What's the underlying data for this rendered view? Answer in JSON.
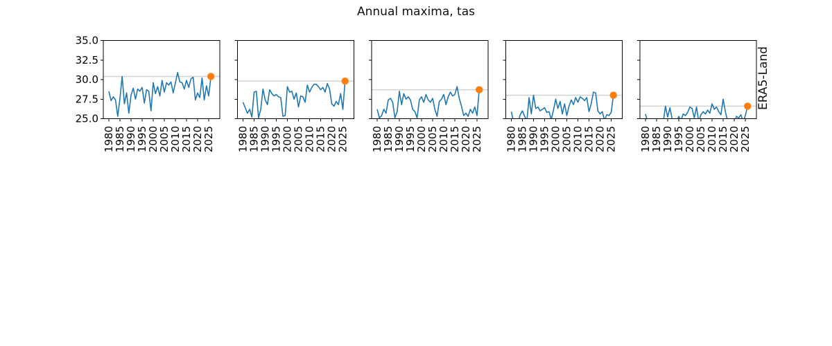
{
  "chart_data": {
    "type": "line",
    "title": "Annual maxima, tas",
    "ylabel_right": "ERA5-Land",
    "years": [
      1980,
      1981,
      1982,
      1983,
      1984,
      1985,
      1986,
      1987,
      1988,
      1989,
      1990,
      1991,
      1992,
      1993,
      1994,
      1995,
      1996,
      1997,
      1998,
      1999,
      2000,
      2001,
      2002,
      2003,
      2004,
      2005,
      2006,
      2007,
      2008,
      2009,
      2010,
      2011,
      2012,
      2013,
      2014,
      2015,
      2016,
      2017,
      2018,
      2019,
      2020,
      2021,
      2022,
      2023,
      2024,
      2025,
      2026
    ],
    "highlight_year": 2026,
    "xlim": [
      1977.5,
      2030.0
    ],
    "ylim": [
      25.0,
      35.0
    ],
    "grid": false,
    "yticks": [
      25.0,
      27.5,
      30.0,
      32.5,
      35.0
    ],
    "ytick_labels": [
      "25.0",
      "27.5",
      "30.0",
      "32.5",
      "35.0"
    ],
    "xticks": [
      1980,
      1985,
      1990,
      1995,
      2000,
      2005,
      2010,
      2015,
      2020,
      2025
    ],
    "xtick_labels": [
      "1980",
      "1985",
      "1990",
      "1995",
      "2000",
      "2005",
      "2010",
      "2015",
      "2020",
      "2025"
    ],
    "colors": {
      "line": "#1f77b4",
      "dot": "#ff7f0e",
      "reference": "#d3d3d3",
      "axis": "#000000"
    },
    "panels": [
      {
        "name": "panel-1",
        "reference": 30.4,
        "values": [
          28.5,
          27.3,
          27.8,
          27.4,
          25.3,
          27.6,
          30.4,
          26.9,
          28.3,
          25.7,
          28.0,
          28.9,
          27.5,
          28.8,
          28.5,
          29.0,
          27.0,
          28.7,
          28.5,
          26.0,
          29.6,
          28.2,
          29.1,
          27.9,
          29.9,
          28.4,
          29.6,
          29.3,
          29.7,
          28.3,
          29.6,
          30.9,
          29.7,
          29.6,
          28.8,
          29.9,
          29.0,
          30.1,
          30.3,
          27.4,
          28.3,
          27.7,
          30.2,
          27.4,
          29.2,
          27.9,
          30.4
        ]
      },
      {
        "name": "panel-2",
        "reference": 29.8,
        "values": [
          27.1,
          26.4,
          25.7,
          26.2,
          25.2,
          28.4,
          28.5,
          25.1,
          26.2,
          28.8,
          27.4,
          26.8,
          28.7,
          28.2,
          27.9,
          28.1,
          27.8,
          27.7,
          25.3,
          25.4,
          29.1,
          28.4,
          28.5,
          27.5,
          28.3,
          26.5,
          27.9,
          27.8,
          27.1,
          29.3,
          28.4,
          29.0,
          29.4,
          29.4,
          29.1,
          28.7,
          29.0,
          28.4,
          29.5,
          28.8,
          26.9,
          26.6,
          27.2,
          26.8,
          28.2,
          26.2,
          29.8
        ]
      },
      {
        "name": "panel-3",
        "reference": 28.7,
        "values": [
          26.2,
          25.1,
          25.4,
          26.2,
          25.7,
          27.4,
          27.6,
          27.1,
          25.1,
          25.9,
          28.5,
          26.8,
          28.2,
          27.5,
          27.8,
          27.4,
          26.2,
          25.9,
          25.1,
          27.4,
          27.8,
          27.1,
          28.1,
          27.4,
          27.1,
          27.6,
          26.2,
          25.3,
          27.2,
          27.5,
          28.1,
          26.8,
          27.8,
          28.4,
          27.9,
          28.1,
          29.1,
          27.6,
          26.6,
          25.4,
          25.7,
          25.3,
          26.2,
          25.7,
          26.5,
          25.4,
          28.7
        ]
      },
      {
        "name": "panel-4",
        "reference": 28.0,
        "values": [
          25.9,
          24.6,
          24.8,
          24.5,
          25.5,
          26.0,
          25.3,
          24.7,
          27.7,
          25.6,
          28.0,
          26.3,
          26.5,
          26.0,
          26.2,
          26.4,
          25.8,
          25.9,
          24.9,
          26.1,
          27.5,
          26.3,
          27.2,
          25.6,
          26.9,
          25.4,
          26.6,
          27.4,
          26.8,
          27.7,
          27.1,
          27.8,
          27.6,
          27.3,
          27.7,
          25.9,
          26.9,
          28.4,
          28.3,
          26.0,
          25.6,
          25.9,
          24.8,
          25.5,
          25.4,
          25.8,
          28.0
        ]
      },
      {
        "name": "panel-5",
        "reference": 26.6,
        "values": [
          25.6,
          24.5,
          24.3,
          24.6,
          24.2,
          24.4,
          24.7,
          24.3,
          24.5,
          26.6,
          25.2,
          26.4,
          25.0,
          24.4,
          24.6,
          25.3,
          24.8,
          25.6,
          25.4,
          25.8,
          26.5,
          26.3,
          25.1,
          26.5,
          24.6,
          25.5,
          25.9,
          25.6,
          26.1,
          25.7,
          26.9,
          26.2,
          26.5,
          25.9,
          25.5,
          27.5,
          25.9,
          24.7,
          24.4,
          24.6,
          24.3,
          25.3,
          25.1,
          25.5,
          24.6,
          25.4,
          26.6
        ]
      }
    ]
  }
}
